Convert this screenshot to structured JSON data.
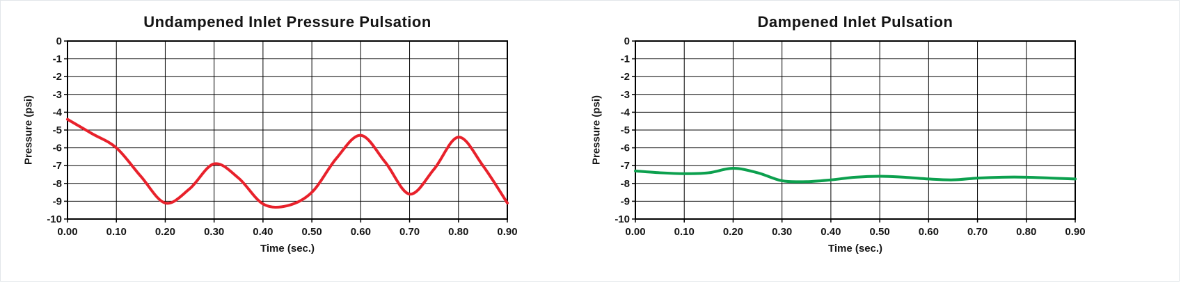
{
  "page": {
    "background": "#ffffff",
    "grid_color": "#000000",
    "axis_color": "#000000"
  },
  "chart_data": [
    {
      "type": "line",
      "title": "Undampened Inlet Pressure Pulsation",
      "xlabel": "Time (sec.)",
      "ylabel": "Pressure (psi)",
      "xlim": [
        0,
        0.9
      ],
      "ylim": [
        -10,
        0
      ],
      "grid": true,
      "legend": "none",
      "x_ticks": [
        "0.00",
        "0.10",
        "0.20",
        "0.30",
        "0.40",
        "0.50",
        "0.60",
        "0.70",
        "0.80",
        "0.90"
      ],
      "y_ticks": [
        0,
        -1,
        -2,
        -3,
        -4,
        -5,
        -6,
        -7,
        -8,
        -9,
        -10
      ],
      "line_color": "#e8212b",
      "series": [
        {
          "name": "Undampened inlet pressure",
          "color": "#e8212b",
          "x": [
            0.0,
            0.05,
            0.1,
            0.15,
            0.2,
            0.25,
            0.3,
            0.35,
            0.4,
            0.45,
            0.5,
            0.55,
            0.6,
            0.65,
            0.7,
            0.75,
            0.8,
            0.85,
            0.9
          ],
          "y": [
            -4.4,
            -5.2,
            -6.0,
            -7.6,
            -9.1,
            -8.3,
            -6.9,
            -7.7,
            -9.15,
            -9.25,
            -8.5,
            -6.6,
            -5.3,
            -6.8,
            -8.6,
            -7.2,
            -5.4,
            -7.0,
            -9.1
          ]
        }
      ]
    },
    {
      "type": "line",
      "title": "Dampened Inlet Pulsation",
      "xlabel": "Time (sec.)",
      "ylabel": "Pressure (psi)",
      "xlim": [
        0,
        0.9
      ],
      "ylim": [
        -10,
        0
      ],
      "grid": true,
      "legend": "none",
      "x_ticks": [
        "0.00",
        "0.10",
        "0.20",
        "0.30",
        "0.40",
        "0.50",
        "0.60",
        "0.70",
        "0.80",
        "0.90"
      ],
      "y_ticks": [
        0,
        -1,
        -2,
        -3,
        -4,
        -5,
        -6,
        -7,
        -8,
        -9,
        -10
      ],
      "line_color": "#0ca04e",
      "series": [
        {
          "name": "Dampened inlet pressure",
          "color": "#0ca04e",
          "x": [
            0.0,
            0.05,
            0.1,
            0.15,
            0.2,
            0.25,
            0.3,
            0.35,
            0.4,
            0.45,
            0.5,
            0.55,
            0.6,
            0.65,
            0.7,
            0.75,
            0.8,
            0.85,
            0.9
          ],
          "y": [
            -7.3,
            -7.4,
            -7.45,
            -7.4,
            -7.15,
            -7.4,
            -7.85,
            -7.9,
            -7.8,
            -7.65,
            -7.6,
            -7.65,
            -7.75,
            -7.8,
            -7.7,
            -7.65,
            -7.65,
            -7.7,
            -7.75
          ]
        }
      ]
    }
  ]
}
